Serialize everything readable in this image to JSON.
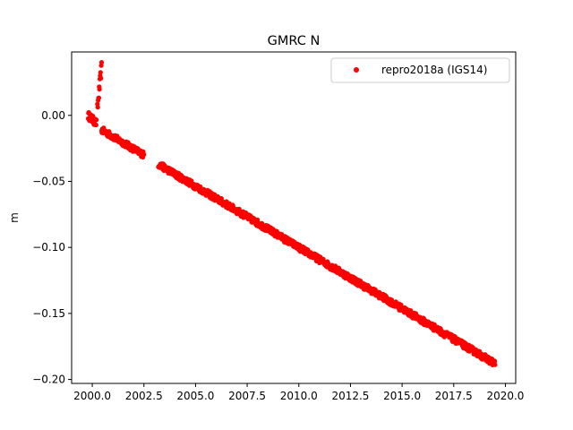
{
  "chart_data": {
    "type": "scatter",
    "title": "GMRC N",
    "xlabel": "",
    "ylabel": "m",
    "xlim": [
      1999.0,
      2020.5
    ],
    "ylim": [
      -0.203,
      0.048
    ],
    "xticks": [
      2000.0,
      2002.5,
      2005.0,
      2007.5,
      2010.0,
      2012.5,
      2015.0,
      2017.5,
      2020.0
    ],
    "xtick_labels": [
      "2000.0",
      "2002.5",
      "2005.0",
      "2007.5",
      "2010.0",
      "2012.5",
      "2015.0",
      "2017.5",
      "2020.0"
    ],
    "yticks": [
      0.0,
      -0.05,
      -0.1,
      -0.15,
      -0.2
    ],
    "ytick_labels": [
      "0.00",
      "−0.05",
      "−0.10",
      "−0.15",
      "−0.20"
    ],
    "grid": false,
    "legend": {
      "position": "top-right"
    },
    "series": [
      {
        "name": "repro2018a (IGS14)",
        "color": "#ff0000",
        "marker": "circle",
        "segments": [
          {
            "x_start": 1999.8,
            "x_end": 2000.2,
            "y_start": 0.0,
            "y_end": -0.006,
            "spread": 0.003
          },
          {
            "x_start": 2000.25,
            "x_end": 2000.45,
            "y_start": 0.005,
            "y_end": 0.037,
            "spread": 0.004
          },
          {
            "x_start": 2000.45,
            "x_end": 2002.5,
            "y_start": -0.011,
            "y_end": -0.03,
            "spread": 0.0025
          },
          {
            "x_start": 2003.2,
            "x_end": 2019.5,
            "y_start": -0.037,
            "y_end": -0.188,
            "spread": 0.0025
          }
        ]
      }
    ]
  }
}
